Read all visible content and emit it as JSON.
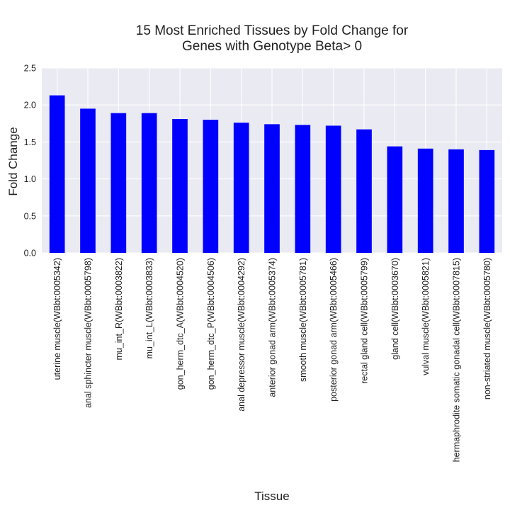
{
  "chart_data": {
    "type": "bar",
    "title_lines": [
      "15 Most Enriched Tissues by Fold Change for",
      "Genes with Genotype Beta> 0"
    ],
    "xlabel": "Tissue",
    "ylabel": "Fold Change",
    "ylim": [
      0,
      2.5
    ],
    "yticks": [
      "0.0",
      "0.5",
      "1.0",
      "1.5",
      "2.0",
      "2.5"
    ],
    "grid": true,
    "bar_color": "#0000ff",
    "background_color": "#eaeaf2",
    "categories": [
      "uterine muscle(WBbt:0005342)",
      "anal sphincter muscle(WBbt:0005798)",
      "mu_int_R(WBbt:0003822)",
      "mu_int_L(WBbt:0003833)",
      "gon_herm_dtc_A(WBbt:0004520)",
      "gon_herm_dtc_P(WBbt:0004506)",
      "anal depressor muscle(WBbt:0004292)",
      "anterior gonad arm(WBbt:0005374)",
      "smooth muscle(WBbt:0005781)",
      "posterior gonad arm(WBbt:0005466)",
      "rectal gland cell(WBbt:0005799)",
      "gland cell(WBbt:0003670)",
      "vulval muscle(WBbt:0005821)",
      "hermaphrodite somatic gonadal cell(WBbt:0007815)",
      "non-striated muscle(WBbt:0005780)"
    ],
    "values": [
      2.13,
      1.95,
      1.89,
      1.89,
      1.81,
      1.8,
      1.76,
      1.74,
      1.73,
      1.72,
      1.67,
      1.44,
      1.41,
      1.4,
      1.39
    ]
  }
}
